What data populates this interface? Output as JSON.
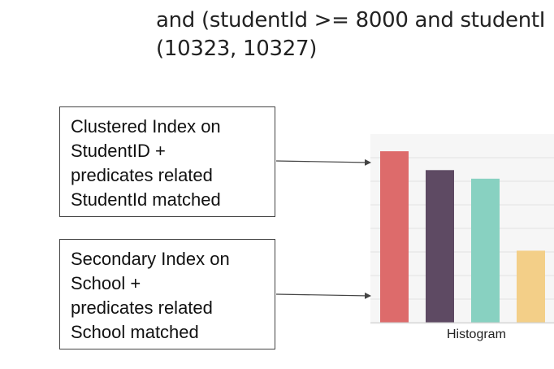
{
  "title": {
    "line1": "and (studentId >= 8000 and studentI",
    "line2": "(10323, 10327)"
  },
  "boxes": [
    {
      "lines": [
        "Clustered Index on",
        "StudentID +",
        "predicates related",
        "StudentId matched"
      ]
    },
    {
      "lines": [
        "Secondary Index on",
        "School +",
        "predicates related",
        "School matched"
      ]
    }
  ],
  "histogram": {
    "caption": "Histogram",
    "background": "#f6f6f6",
    "gridline_color": "#e2e2e2",
    "arrow_color": "#444444"
  },
  "chart_data": {
    "type": "bar",
    "categories": [
      "",
      "",
      "",
      ""
    ],
    "values": [
      1.0,
      0.89,
      0.84,
      0.42
    ],
    "colors": [
      "#dd6b6b",
      "#5e4a63",
      "#88d1c1",
      "#f3cf88"
    ],
    "ylim": [
      0,
      1.1
    ],
    "grid": true
  }
}
